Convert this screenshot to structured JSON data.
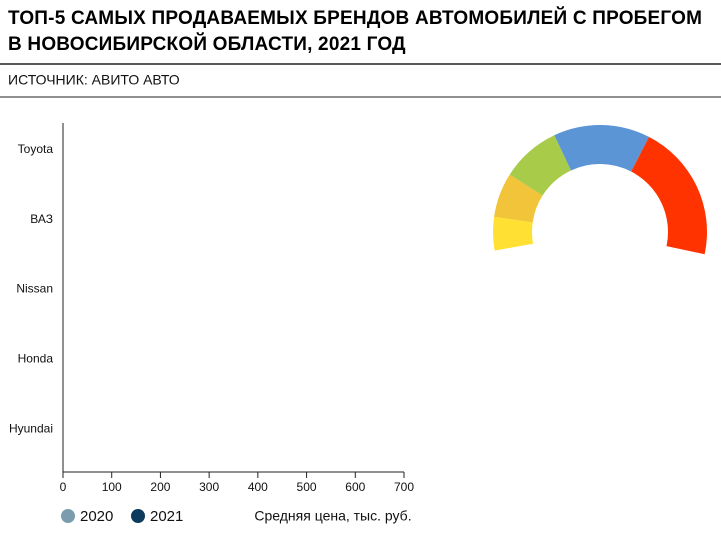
{
  "title": "ТОП-5 САМЫХ ПРОДАВАЕМЫХ БРЕНДОВ АВТОМОБИЛЕЙ С ПРОБЕГОМ В НОВОСИБИРСКОЙ ОБЛАСТИ, 2021 ГОД",
  "source": "ИСТОЧНИК: АВИТО АВТО",
  "chart_data": [
    {
      "type": "bar",
      "orientation": "horizontal",
      "categories": [
        "Toyota",
        "ВАЗ",
        "Nissan",
        "Honda",
        "Hyundai"
      ],
      "series": [
        {
          "name": "2020",
          "color": "#7a9cae",
          "values": [
            null,
            null,
            null,
            null,
            null
          ]
        },
        {
          "name": "2021",
          "color": "#0d3b5e",
          "values": [
            null,
            null,
            null,
            null,
            null
          ]
        }
      ],
      "x_label": "Средняя цена, тыс. руб.",
      "xlim": [
        0,
        700
      ],
      "xticks": [
        0,
        100,
        200,
        300,
        400,
        500,
        600,
        700
      ]
    },
    {
      "type": "pie",
      "donut": true,
      "values": [
        9,
        12,
        16,
        26,
        37
      ],
      "colors": [
        "#ffe033",
        "#f2c43a",
        "#a8cc4a",
        "#5b95d6",
        "#ff3300"
      ]
    }
  ]
}
